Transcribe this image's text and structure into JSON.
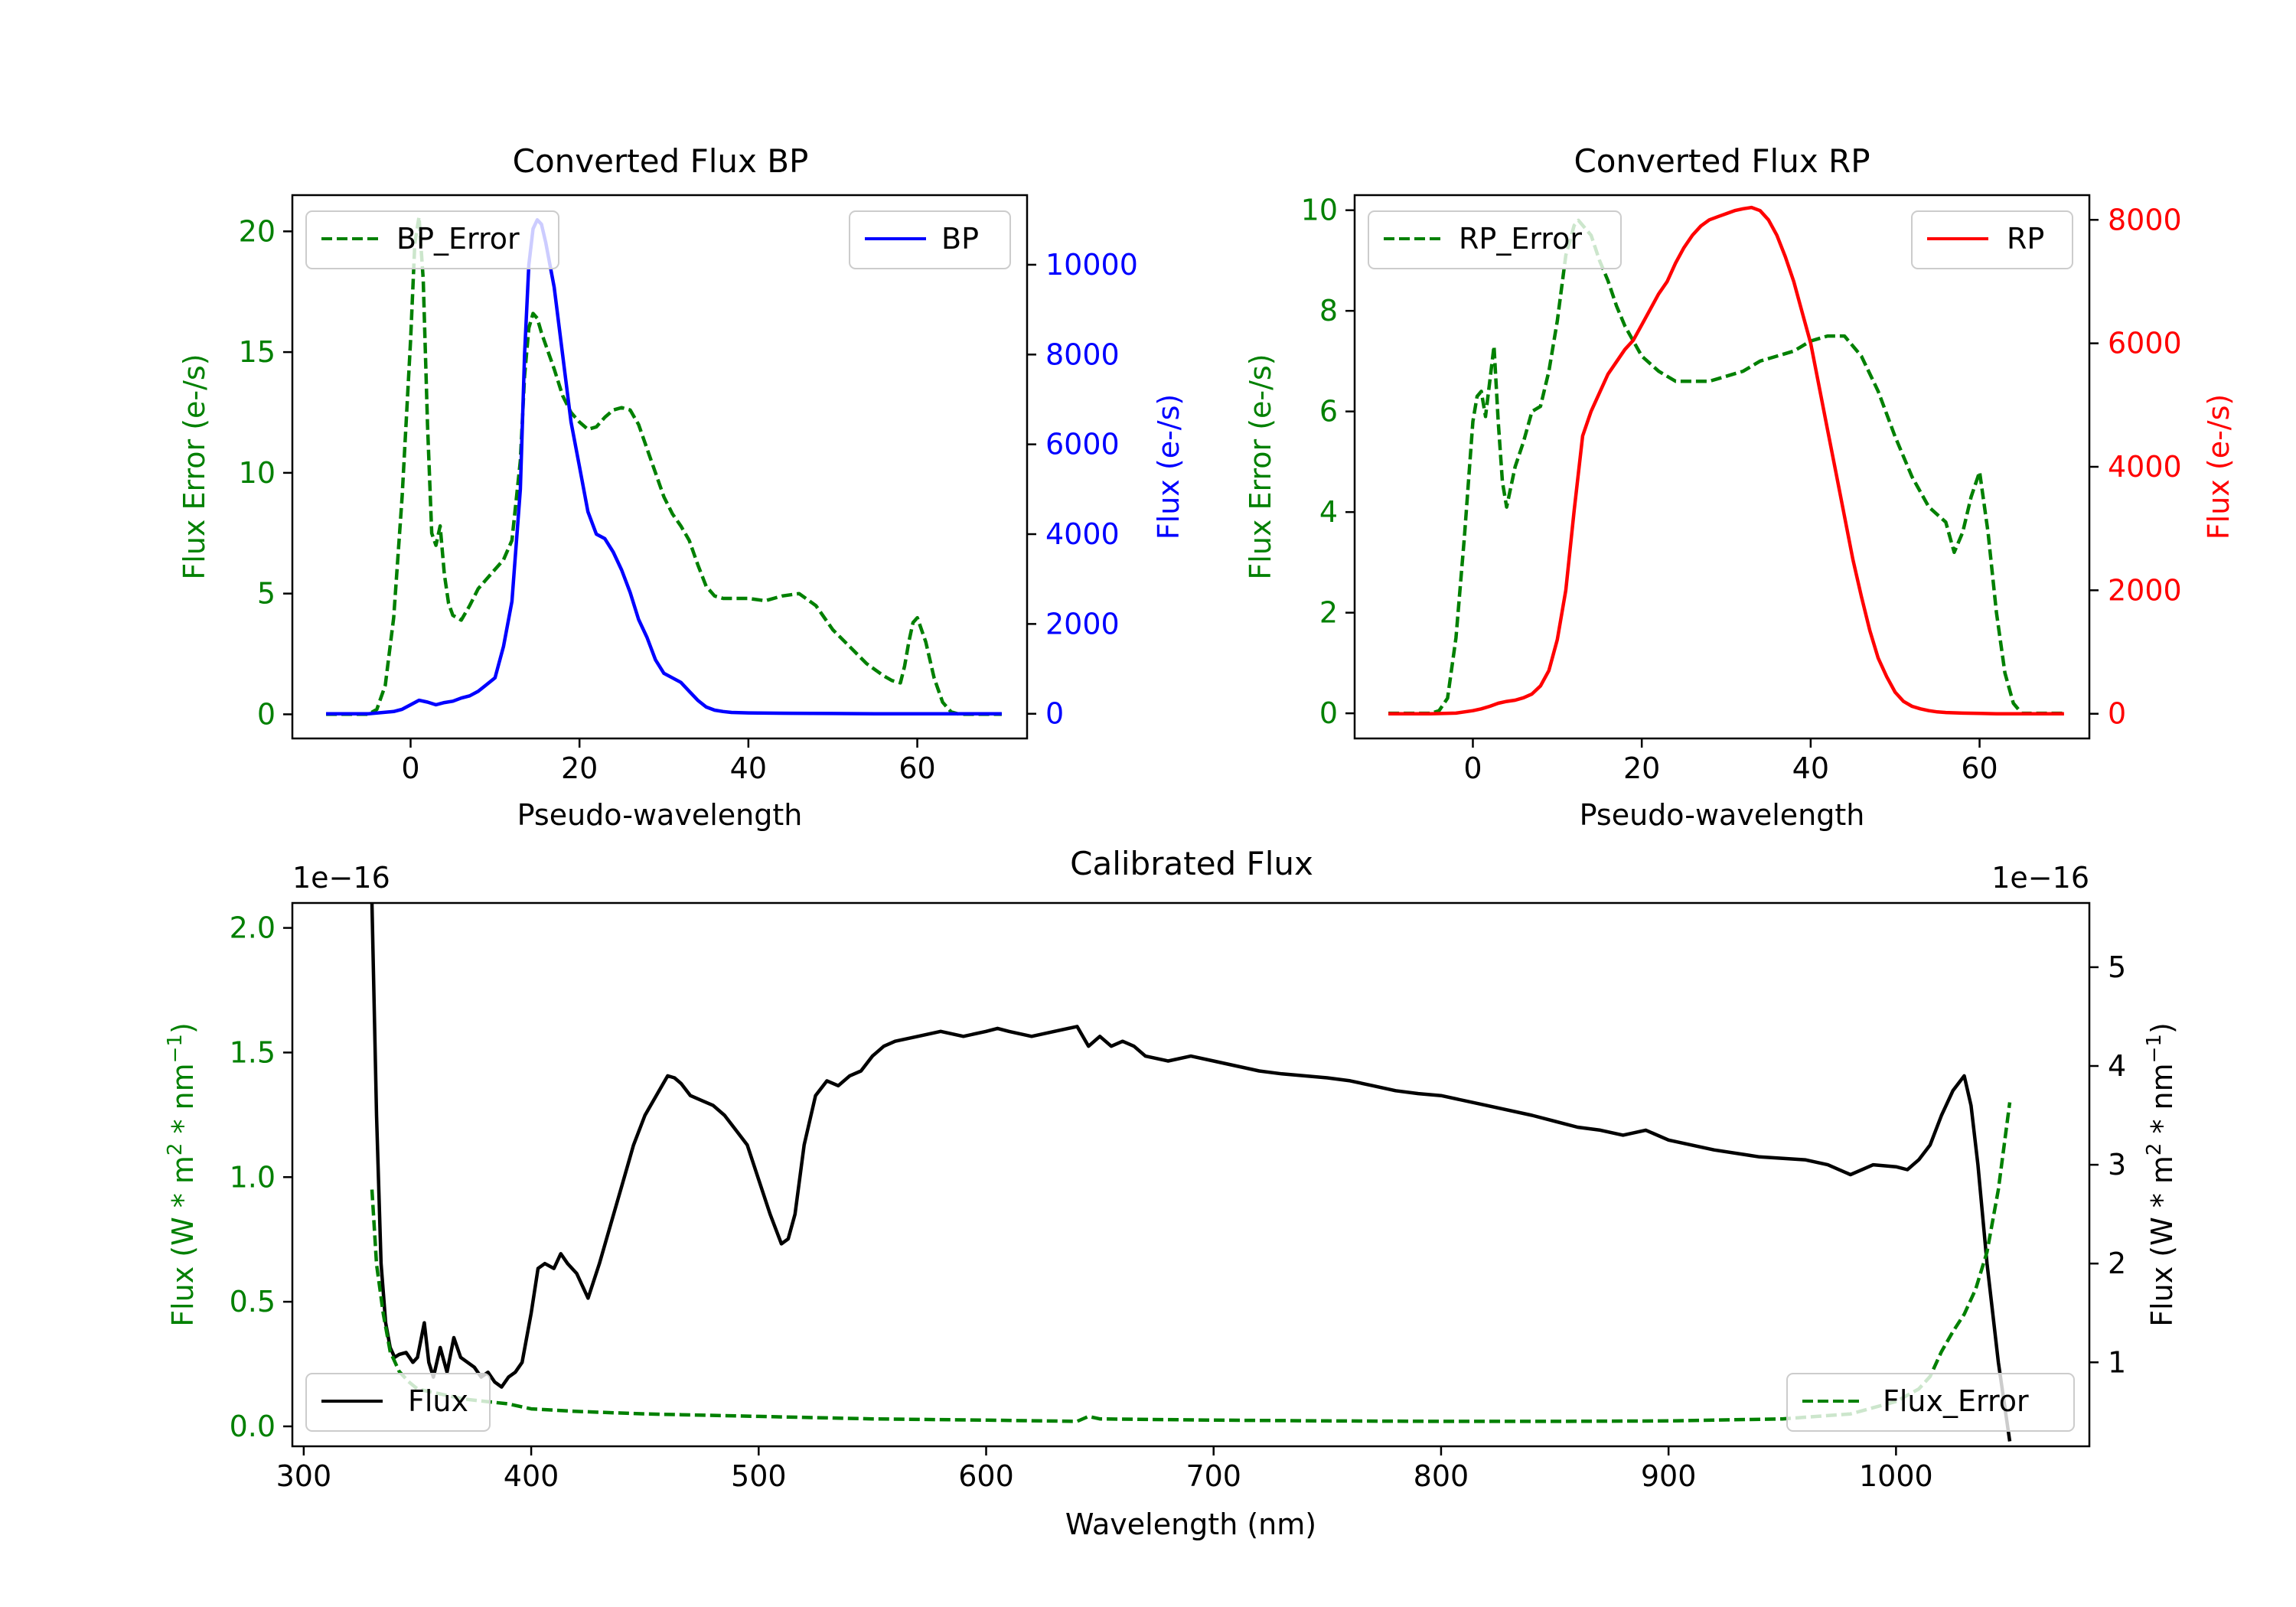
{
  "colors": {
    "green": "#008000",
    "blue": "#0000ff",
    "red": "#ff0000",
    "black": "#000000"
  },
  "chart_data": [
    {
      "id": "bp",
      "type": "line",
      "title": "Converted Flux BP",
      "xlabel": "Pseudo-wavelength",
      "ylabel_left": "Flux Error (e-/s)",
      "ylabel_right": "Flux (e-/s)",
      "xlim": [
        -14,
        73
      ],
      "ylim_left": [
        -1,
        21.5
      ],
      "ylim_right": [
        -550,
        11550
      ],
      "xticks": [
        0,
        20,
        40,
        60
      ],
      "yticks_left": [
        0,
        5,
        10,
        15,
        20
      ],
      "yticks_right": [
        0,
        2000,
        4000,
        6000,
        8000,
        10000
      ],
      "legend_left": {
        "label": "BP_Error",
        "placement": "upper left"
      },
      "legend_right": {
        "label": "BP",
        "placement": "upper right"
      },
      "series": [
        {
          "name": "BP_Error",
          "axis": "left",
          "style": "dashed",
          "color": "#008000",
          "x": [
            -10,
            -5,
            -4,
            -3,
            -2,
            -1,
            0,
            0.5,
            1,
            1.5,
            2,
            2.5,
            3,
            3.5,
            4,
            4.5,
            5,
            6,
            7,
            8,
            9,
            10,
            11,
            12,
            13,
            13.5,
            14,
            14.5,
            15,
            15.5,
            16,
            17,
            18,
            19,
            20,
            21,
            22,
            23,
            24,
            25,
            26,
            27,
            28,
            29,
            30,
            31,
            32,
            33,
            34,
            35,
            36,
            37,
            38,
            40,
            42,
            44,
            46,
            48,
            50,
            52,
            54,
            56,
            57,
            58,
            58.5,
            59,
            59.5,
            60,
            61,
            62,
            63,
            64,
            65,
            70
          ],
          "y": [
            0,
            0,
            0.2,
            1.2,
            4,
            9,
            15.5,
            19.5,
            20.6,
            18,
            12,
            7.5,
            7,
            7.8,
            5.8,
            4.6,
            4.1,
            3.9,
            4.5,
            5.2,
            5.6,
            6,
            6.4,
            7.2,
            10.5,
            14,
            16,
            16.6,
            16.4,
            15.8,
            15.3,
            14.3,
            13.2,
            12.5,
            12.1,
            11.8,
            11.9,
            12.3,
            12.6,
            12.7,
            12.6,
            12,
            11,
            10,
            9,
            8.3,
            7.8,
            7.2,
            6.2,
            5.3,
            4.9,
            4.8,
            4.8,
            4.8,
            4.7,
            4.9,
            5,
            4.5,
            3.5,
            2.8,
            2.1,
            1.6,
            1.4,
            1.3,
            2,
            3,
            3.8,
            4,
            3,
            1.5,
            0.5,
            0.1,
            0,
            0
          ]
        },
        {
          "name": "BP",
          "axis": "right",
          "style": "solid",
          "color": "#0000ff",
          "x": [
            -10,
            -5,
            -2,
            -1,
            0,
            1,
            2,
            3,
            4,
            5,
            6,
            7,
            8,
            9,
            10,
            11,
            12,
            13,
            13.5,
            14,
            14.5,
            15,
            15.5,
            16,
            17,
            18,
            19,
            20,
            21,
            22,
            23,
            24,
            25,
            26,
            27,
            28,
            29,
            30,
            31,
            32,
            33,
            34,
            35,
            36,
            37,
            38,
            40,
            45,
            50,
            55,
            60,
            65,
            70
          ],
          "y": [
            0,
            0,
            50,
            100,
            200,
            300,
            260,
            200,
            250,
            280,
            350,
            400,
            500,
            650,
            800,
            1500,
            2500,
            5000,
            8000,
            10000,
            10800,
            11000,
            10900,
            10500,
            9500,
            8000,
            6500,
            5500,
            4500,
            4000,
            3900,
            3600,
            3200,
            2700,
            2100,
            1700,
            1200,
            900,
            800,
            700,
            500,
            300,
            150,
            80,
            50,
            30,
            20,
            10,
            5,
            0,
            0,
            0,
            0
          ]
        }
      ]
    },
    {
      "id": "rp",
      "type": "line",
      "title": "Converted Flux RP",
      "xlabel": "Pseudo-wavelength",
      "ylabel_left": "Flux Error (e-/s)",
      "ylabel_right": "Flux (e-/s)",
      "xlim": [
        -14,
        73
      ],
      "ylim_left": [
        -0.5,
        10.3
      ],
      "ylim_right": [
        -400,
        8400
      ],
      "xticks": [
        0,
        20,
        40,
        60
      ],
      "yticks_left": [
        0,
        2,
        4,
        6,
        8,
        10
      ],
      "yticks_right": [
        0,
        2000,
        4000,
        6000,
        8000
      ],
      "legend_left": {
        "label": "RP_Error",
        "placement": "upper left"
      },
      "legend_right": {
        "label": "RP",
        "placement": "upper right"
      },
      "series": [
        {
          "name": "RP_Error",
          "axis": "left",
          "style": "dashed",
          "color": "#008000",
          "x": [
            -10,
            -5,
            -4,
            -3,
            -2,
            -1,
            0,
            0.5,
            1,
            1.5,
            2,
            2.5,
            3,
            3.5,
            4,
            5,
            6,
            7,
            8,
            9,
            10,
            11,
            12,
            12.5,
            13,
            14,
            15,
            16,
            17,
            18,
            19,
            20,
            22,
            24,
            26,
            28,
            30,
            32,
            34,
            36,
            38,
            40,
            42,
            44,
            46,
            48,
            50,
            52,
            54,
            56,
            57,
            58,
            59,
            60,
            61,
            62,
            63,
            64,
            65,
            70
          ],
          "y": [
            0,
            0,
            0.05,
            0.3,
            1.5,
            3.5,
            5.8,
            6.3,
            6.4,
            5.9,
            6.6,
            7.3,
            5.8,
            4.6,
            4.1,
            4.9,
            5.4,
            6,
            6.1,
            6.8,
            7.8,
            9.1,
            9.7,
            9.8,
            9.7,
            9.5,
            9,
            8.6,
            8.1,
            7.7,
            7.4,
            7.1,
            6.8,
            6.6,
            6.6,
            6.6,
            6.7,
            6.8,
            7,
            7.1,
            7.2,
            7.4,
            7.5,
            7.5,
            7.1,
            6.4,
            5.5,
            4.7,
            4.1,
            3.8,
            3.2,
            3.6,
            4.3,
            4.8,
            3.6,
            2,
            0.8,
            0.2,
            0,
            0
          ]
        },
        {
          "name": "RP",
          "axis": "right",
          "style": "solid",
          "color": "#ff0000",
          "x": [
            -10,
            -5,
            -2,
            0,
            1,
            2,
            3,
            4,
            5,
            6,
            7,
            8,
            9,
            10,
            11,
            12,
            13,
            14,
            15,
            16,
            17,
            18,
            19,
            20,
            21,
            22,
            23,
            24,
            25,
            26,
            27,
            28,
            29,
            30,
            31,
            32,
            33,
            34,
            35,
            36,
            37,
            38,
            39,
            40,
            41,
            42,
            43,
            44,
            45,
            46,
            47,
            48,
            49,
            50,
            51,
            52,
            53,
            54,
            55,
            56,
            58,
            60,
            62,
            65,
            70
          ],
          "y": [
            0,
            0,
            10,
            50,
            80,
            120,
            170,
            200,
            220,
            260,
            320,
            450,
            700,
            1200,
            2000,
            3300,
            4500,
            4900,
            5200,
            5500,
            5700,
            5900,
            6050,
            6300,
            6550,
            6800,
            7000,
            7300,
            7550,
            7750,
            7900,
            8000,
            8050,
            8100,
            8150,
            8180,
            8200,
            8150,
            8000,
            7750,
            7400,
            7000,
            6500,
            6000,
            5300,
            4600,
            3900,
            3200,
            2500,
            1900,
            1350,
            900,
            600,
            350,
            200,
            120,
            80,
            50,
            30,
            20,
            10,
            5,
            0,
            0,
            0
          ]
        }
      ]
    },
    {
      "id": "cal",
      "type": "line",
      "title": "Calibrated Flux",
      "xlabel": "Wavelength (nm)",
      "ylabel_left": "Flux (W * m",
      "ylabel_right": "Flux (W * m",
      "ylabel_sup1": "2",
      "ylabel_mid": " * nm",
      "ylabel_sup2": "−1",
      "ylabel_end": ")",
      "offset_left": "1e−16",
      "offset_right": "1e−16",
      "xlim": [
        295,
        1085
      ],
      "ylim_left": [
        -0.08,
        2.1
      ],
      "ylim_right": [
        0.15,
        5.65
      ],
      "xticks": [
        300,
        400,
        500,
        600,
        700,
        800,
        900,
        1000
      ],
      "yticks_left": [
        0.0,
        0.5,
        1.0,
        1.5,
        2.0
      ],
      "yticks_right": [
        1,
        2,
        3,
        4,
        5
      ],
      "legend_left": {
        "label": "Flux",
        "placement": "lower left"
      },
      "legend_right": {
        "label": "Flux_Error",
        "placement": "lower right"
      },
      "series": [
        {
          "name": "Flux",
          "axis": "right",
          "style": "solid",
          "color": "#000000",
          "x": [
            330,
            332,
            334,
            336,
            338,
            340,
            342,
            345,
            348,
            350,
            353,
            355,
            357,
            360,
            363,
            366,
            369,
            372,
            375,
            378,
            381,
            384,
            387,
            390,
            393,
            396,
            400,
            403,
            406,
            410,
            413,
            416,
            420,
            425,
            430,
            435,
            440,
            445,
            450,
            455,
            460,
            463,
            466,
            470,
            475,
            480,
            485,
            490,
            495,
            500,
            505,
            510,
            513,
            516,
            520,
            525,
            530,
            535,
            540,
            545,
            550,
            555,
            560,
            570,
            580,
            590,
            600,
            605,
            610,
            620,
            630,
            640,
            645,
            650,
            655,
            660,
            665,
            670,
            680,
            690,
            700,
            710,
            720,
            730,
            740,
            750,
            760,
            770,
            780,
            790,
            800,
            820,
            840,
            860,
            870,
            880,
            890,
            900,
            920,
            940,
            960,
            970,
            980,
            990,
            1000,
            1005,
            1010,
            1015,
            1020,
            1025,
            1030,
            1033,
            1036,
            1040,
            1045,
            1050
          ],
          "y": [
            5.65,
            3.5,
            2.0,
            1.4,
            1.15,
            1.05,
            1.08,
            1.1,
            1.0,
            1.05,
            1.4,
            1.0,
            0.85,
            1.15,
            0.9,
            1.25,
            1.05,
            1.0,
            0.95,
            0.85,
            0.9,
            0.8,
            0.75,
            0.85,
            0.9,
            1.0,
            1.5,
            1.95,
            2.0,
            1.95,
            2.1,
            2.0,
            1.9,
            1.65,
            2.0,
            2.4,
            2.8,
            3.2,
            3.5,
            3.7,
            3.9,
            3.88,
            3.82,
            3.7,
            3.65,
            3.6,
            3.5,
            3.35,
            3.2,
            2.85,
            2.5,
            2.2,
            2.25,
            2.5,
            3.2,
            3.7,
            3.85,
            3.8,
            3.9,
            3.95,
            4.1,
            4.2,
            4.25,
            4.3,
            4.35,
            4.3,
            4.35,
            4.38,
            4.35,
            4.3,
            4.35,
            4.4,
            4.2,
            4.3,
            4.2,
            4.25,
            4.2,
            4.1,
            4.05,
            4.1,
            4.05,
            4.0,
            3.95,
            3.92,
            3.9,
            3.88,
            3.85,
            3.8,
            3.75,
            3.72,
            3.7,
            3.6,
            3.5,
            3.38,
            3.35,
            3.3,
            3.35,
            3.25,
            3.15,
            3.08,
            3.05,
            3.0,
            2.9,
            3.0,
            2.98,
            2.95,
            3.05,
            3.2,
            3.5,
            3.75,
            3.9,
            3.6,
            3.0,
            2.0,
            1.0,
            0.2
          ]
        },
        {
          "name": "Flux_Error",
          "axis": "left",
          "style": "dashed",
          "color": "#008000",
          "x": [
            330,
            332,
            335,
            338,
            342,
            346,
            350,
            360,
            370,
            380,
            390,
            400,
            420,
            450,
            500,
            550,
            600,
            640,
            645,
            650,
            700,
            750,
            800,
            850,
            900,
            950,
            980,
            1000,
            1010,
            1015,
            1020,
            1025,
            1030,
            1035,
            1040,
            1045,
            1050
          ],
          "y": [
            0.95,
            0.65,
            0.45,
            0.3,
            0.22,
            0.18,
            0.15,
            0.13,
            0.11,
            0.1,
            0.09,
            0.07,
            0.06,
            0.05,
            0.04,
            0.03,
            0.025,
            0.02,
            0.04,
            0.03,
            0.025,
            0.022,
            0.02,
            0.02,
            0.022,
            0.03,
            0.05,
            0.1,
            0.15,
            0.2,
            0.3,
            0.38,
            0.45,
            0.55,
            0.7,
            0.95,
            1.3
          ]
        }
      ]
    }
  ]
}
